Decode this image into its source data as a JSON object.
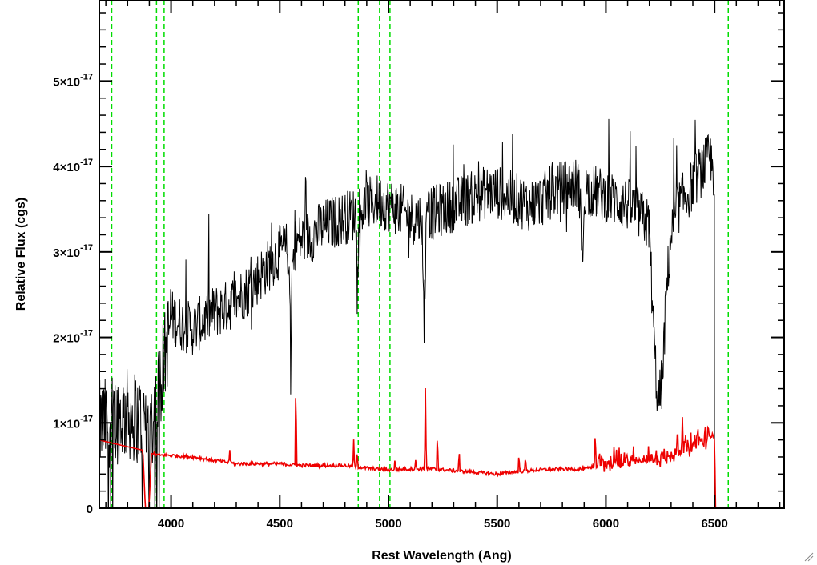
{
  "chart_data": {
    "type": "line",
    "title": "",
    "xlabel": "Rest Wavelength (Ang)",
    "ylabel": "Relative Flux (cgs)",
    "xlim": [
      3670,
      6820
    ],
    "ylim": [
      0,
      5.95e-17
    ],
    "x_ticks": [
      4000,
      4500,
      5000,
      5500,
      6000,
      6500
    ],
    "x_tick_labels": [
      "4000",
      "4500",
      "5000",
      "5500",
      "6000",
      "6500"
    ],
    "y_ticks": [
      0,
      1e-17,
      2e-17,
      3e-17,
      4e-17,
      5e-17
    ],
    "y_tick_labels": [
      {
        "mant": "0",
        "exp": ""
      },
      {
        "mant": "1×10",
        "exp": "-17"
      },
      {
        "mant": "2×10",
        "exp": "-17"
      },
      {
        "mant": "3×10",
        "exp": "-17"
      },
      {
        "mant": "4×10",
        "exp": "-17"
      },
      {
        "mant": "5×10",
        "exp": "-17"
      }
    ],
    "grid": false,
    "vlines": {
      "color": "#00dd00",
      "style": "dashed",
      "x": [
        3727,
        3933,
        3968,
        4861,
        4959,
        5007,
        6563
      ]
    },
    "series": [
      {
        "color": "#000000",
        "kind": "noisy",
        "x": [
          3670,
          3700,
          3750,
          3800,
          3850,
          3880,
          3900,
          3930,
          3950,
          3980,
          4000,
          4050,
          4100,
          4150,
          4200,
          4250,
          4300,
          4350,
          4400,
          4450,
          4500,
          4550,
          4600,
          4650,
          4700,
          4750,
          4800,
          4850,
          4900,
          4950,
          5000,
          5050,
          5100,
          5150,
          5200,
          5250,
          5300,
          5350,
          5400,
          5450,
          5500,
          5550,
          5600,
          5650,
          5700,
          5750,
          5800,
          5850,
          5900,
          5950,
          6000,
          6050,
          6100,
          6150,
          6200,
          6220,
          6240,
          6260,
          6280,
          6300,
          6330,
          6350,
          6380,
          6400,
          6450,
          6480,
          6500,
          6505
        ],
        "y": [
          9.5e-18,
          1e-17,
          1.05e-17,
          1.1e-17,
          1.05e-17,
          1e-17,
          9.5e-18,
          1.15e-17,
          1.5e-17,
          1.9e-17,
          2.25e-17,
          2.15e-17,
          2.1e-17,
          2.2e-17,
          2.3e-17,
          2.35e-17,
          2.45e-17,
          2.55e-17,
          2.7e-17,
          2.85e-17,
          3e-17,
          3.05e-17,
          3.15e-17,
          3.2e-17,
          3.3e-17,
          3.35e-17,
          3.4e-17,
          3.45e-17,
          3.55e-17,
          3.6e-17,
          3.55e-17,
          3.5e-17,
          3.4e-17,
          3.4e-17,
          3.45e-17,
          3.5e-17,
          3.55e-17,
          3.6e-17,
          3.65e-17,
          3.7e-17,
          3.7e-17,
          3.65e-17,
          3.6e-17,
          3.55e-17,
          3.6e-17,
          3.7e-17,
          3.75e-17,
          3.8e-17,
          3.75e-17,
          3.7e-17,
          3.65e-17,
          3.6e-17,
          3.55e-17,
          3.45e-17,
          3.3e-17,
          2e-17,
          1.2e-17,
          1.5e-17,
          2.6e-17,
          3.2e-17,
          3.5e-17,
          3.6e-17,
          3.7e-17,
          3.8e-17,
          4e-17,
          4.1e-17,
          3.9e-17,
          0
        ]
      },
      {
        "color": "#ee0000",
        "kind": "smooth",
        "x": [
          3670,
          3700,
          3800,
          3870,
          3880,
          3890,
          3900,
          3910,
          3950,
          4000,
          4100,
          4200,
          4300,
          4400,
          4500,
          4600,
          4700,
          4800,
          4900,
          5000,
          5100,
          5200,
          5300,
          5400,
          5500,
          5600,
          5700,
          5800,
          5900,
          6000,
          6100,
          6200,
          6250,
          6300,
          6350,
          6400,
          6450,
          6490,
          6500,
          6505,
          6820
        ],
        "y": [
          8e-18,
          7.8e-18,
          7.2e-18,
          6.8e-18,
          1e-18,
          -3e-18,
          1e-18,
          6.4e-18,
          6.2e-18,
          6.2e-18,
          6e-18,
          5.6e-18,
          5.2e-18,
          5.2e-18,
          5.2e-18,
          5e-18,
          5e-18,
          5e-18,
          4.7e-18,
          4.5e-18,
          4.6e-18,
          4.6e-18,
          4.4e-18,
          4.2e-18,
          4e-18,
          4.3e-18,
          4.5e-18,
          4.6e-18,
          4.6e-18,
          5e-18,
          5.2e-18,
          5.5e-18,
          5.5e-18,
          6e-18,
          6.5e-18,
          7e-18,
          7.5e-18,
          8.5e-18,
          8e-18,
          -5e-19,
          -5e-19
        ]
      }
    ],
    "emission_lines": [
      {
        "x": 4270,
        "h": 1.5e-18
      },
      {
        "x": 4574,
        "h": 1.05e-17
      },
      {
        "x": 4840,
        "h": 3e-18
      },
      {
        "x": 4856,
        "h": 1.8e-18
      },
      {
        "x": 5030,
        "h": 1.2e-18
      },
      {
        "x": 5125,
        "h": 1e-18
      },
      {
        "x": 5170,
        "h": 9.5e-18
      },
      {
        "x": 5225,
        "h": 4.5e-18
      },
      {
        "x": 5325,
        "h": 2.5e-18
      },
      {
        "x": 5600,
        "h": 2e-18
      },
      {
        "x": 5630,
        "h": 1.8e-18
      },
      {
        "x": 5950,
        "h": 2.5e-18
      },
      {
        "x": 5970,
        "h": 2e-18
      },
      {
        "x": 6330,
        "h": 2.8e-18
      },
      {
        "x": 6352,
        "h": 4.5e-18
      },
      {
        "x": 6420,
        "h": 2.5e-18
      }
    ],
    "absorption_features": [
      {
        "x": 4550,
        "depth": 1.2e-17
      },
      {
        "x": 4860,
        "depth": 9e-18
      },
      {
        "x": 5165,
        "depth": 1.2e-17
      },
      {
        "x": 5890,
        "depth": 1e-17
      }
    ]
  }
}
